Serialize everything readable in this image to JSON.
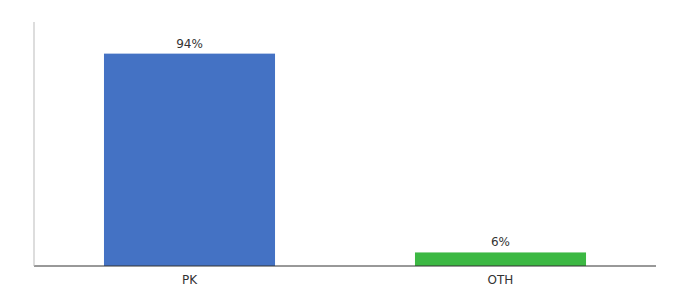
{
  "chart_data": {
    "type": "bar",
    "categories": [
      "PK",
      "OTH"
    ],
    "values": [
      94,
      6
    ],
    "value_labels": [
      "94%",
      "6%"
    ],
    "colors": [
      "#4472c4",
      "#3cb843"
    ],
    "ylim": [
      0,
      108
    ],
    "data_labels": true,
    "tick_labels": "x",
    "grid": false
  }
}
